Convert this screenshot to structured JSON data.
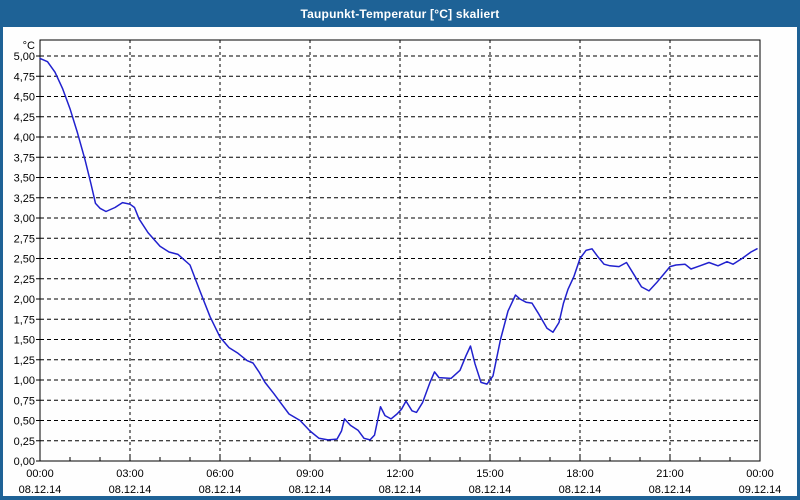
{
  "window": {
    "title": "Taupunkt-Temperatur [°C] skaliert"
  },
  "colors": {
    "frame_blue": "#1E6296",
    "line_blue": "#2121CE",
    "grid_black": "#000000",
    "plot_background": "#FEFEFE",
    "title_text": "#FFFFFF"
  },
  "chart_data": {
    "type": "line",
    "title": "Taupunkt-Temperatur [°C] skaliert",
    "grid": true,
    "legend": false,
    "y_axis": {
      "unit": "°C",
      "min": 0,
      "max": 5,
      "tick_step": 0.25,
      "tick_labels": [
        "0,00",
        "0,25",
        "0,50",
        "0,75",
        "1,00",
        "1,25",
        "1,50",
        "1,75",
        "2,00",
        "2,25",
        "2,50",
        "2,75",
        "3,00",
        "3,25",
        "3,50",
        "3,75",
        "4,00",
        "4,25",
        "4,50",
        "4,75",
        "5,00"
      ]
    },
    "x_axis": {
      "range_hours": [
        0,
        24
      ],
      "major_tick_hours": 3,
      "minor_tick_hours": 1,
      "tick_labels": [
        {
          "time": "00:00",
          "date": "08.12.14"
        },
        {
          "time": "03:00",
          "date": "08.12.14"
        },
        {
          "time": "06:00",
          "date": "08.12.14"
        },
        {
          "time": "09:00",
          "date": "08.12.14"
        },
        {
          "time": "12:00",
          "date": "08.12.14"
        },
        {
          "time": "15:00",
          "date": "08.12.14"
        },
        {
          "time": "18:00",
          "date": "08.12.14"
        },
        {
          "time": "21:00",
          "date": "08.12.14"
        },
        {
          "time": "00:00",
          "date": "09.12.14"
        }
      ]
    },
    "series": [
      {
        "name": "Taupunkt-Temperatur",
        "color": "#2121CE",
        "points": [
          {
            "t": 0.0,
            "v": 4.97
          },
          {
            "t": 0.25,
            "v": 4.93
          },
          {
            "t": 0.5,
            "v": 4.8
          },
          {
            "t": 0.75,
            "v": 4.6
          },
          {
            "t": 1.0,
            "v": 4.35
          },
          {
            "t": 1.25,
            "v": 4.05
          },
          {
            "t": 1.5,
            "v": 3.72
          },
          {
            "t": 1.7,
            "v": 3.42
          },
          {
            "t": 1.85,
            "v": 3.18
          },
          {
            "t": 2.0,
            "v": 3.12
          },
          {
            "t": 2.2,
            "v": 3.08
          },
          {
            "t": 2.5,
            "v": 3.13
          },
          {
            "t": 2.75,
            "v": 3.19
          },
          {
            "t": 3.0,
            "v": 3.17
          },
          {
            "t": 3.15,
            "v": 3.13
          },
          {
            "t": 3.3,
            "v": 2.99
          },
          {
            "t": 3.6,
            "v": 2.82
          },
          {
            "t": 4.0,
            "v": 2.65
          },
          {
            "t": 4.3,
            "v": 2.58
          },
          {
            "t": 4.6,
            "v": 2.55
          },
          {
            "t": 5.0,
            "v": 2.42
          },
          {
            "t": 5.33,
            "v": 2.1
          },
          {
            "t": 5.67,
            "v": 1.78
          },
          {
            "t": 6.0,
            "v": 1.53
          },
          {
            "t": 6.3,
            "v": 1.4
          },
          {
            "t": 6.6,
            "v": 1.33
          },
          {
            "t": 6.9,
            "v": 1.24
          },
          {
            "t": 7.1,
            "v": 1.21
          },
          {
            "t": 7.3,
            "v": 1.1
          },
          {
            "t": 7.5,
            "v": 0.97
          },
          {
            "t": 7.8,
            "v": 0.83
          },
          {
            "t": 8.0,
            "v": 0.73
          },
          {
            "t": 8.3,
            "v": 0.58
          },
          {
            "t": 8.67,
            "v": 0.5
          },
          {
            "t": 9.0,
            "v": 0.37
          },
          {
            "t": 9.3,
            "v": 0.28
          },
          {
            "t": 9.6,
            "v": 0.26
          },
          {
            "t": 9.9,
            "v": 0.27
          },
          {
            "t": 10.05,
            "v": 0.37
          },
          {
            "t": 10.15,
            "v": 0.52
          },
          {
            "t": 10.35,
            "v": 0.44
          },
          {
            "t": 10.6,
            "v": 0.38
          },
          {
            "t": 10.8,
            "v": 0.28
          },
          {
            "t": 11.0,
            "v": 0.26
          },
          {
            "t": 11.15,
            "v": 0.32
          },
          {
            "t": 11.35,
            "v": 0.67
          },
          {
            "t": 11.5,
            "v": 0.56
          },
          {
            "t": 11.7,
            "v": 0.52
          },
          {
            "t": 11.9,
            "v": 0.58
          },
          {
            "t": 12.05,
            "v": 0.64
          },
          {
            "t": 12.2,
            "v": 0.74
          },
          {
            "t": 12.4,
            "v": 0.62
          },
          {
            "t": 12.55,
            "v": 0.6
          },
          {
            "t": 12.75,
            "v": 0.72
          },
          {
            "t": 13.0,
            "v": 0.97
          },
          {
            "t": 13.15,
            "v": 1.1
          },
          {
            "t": 13.3,
            "v": 1.03
          },
          {
            "t": 13.7,
            "v": 1.02
          },
          {
            "t": 14.0,
            "v": 1.12
          },
          {
            "t": 14.2,
            "v": 1.3
          },
          {
            "t": 14.35,
            "v": 1.42
          },
          {
            "t": 14.5,
            "v": 1.2
          },
          {
            "t": 14.7,
            "v": 0.97
          },
          {
            "t": 14.9,
            "v": 0.95
          },
          {
            "t": 15.1,
            "v": 1.05
          },
          {
            "t": 15.35,
            "v": 1.5
          },
          {
            "t": 15.6,
            "v": 1.85
          },
          {
            "t": 15.85,
            "v": 2.05
          },
          {
            "t": 16.0,
            "v": 2.0
          },
          {
            "t": 16.2,
            "v": 1.96
          },
          {
            "t": 16.4,
            "v": 1.95
          },
          {
            "t": 16.6,
            "v": 1.83
          },
          {
            "t": 16.9,
            "v": 1.64
          },
          {
            "t": 17.1,
            "v": 1.59
          },
          {
            "t": 17.3,
            "v": 1.71
          },
          {
            "t": 17.45,
            "v": 1.95
          },
          {
            "t": 17.6,
            "v": 2.12
          },
          {
            "t": 17.8,
            "v": 2.28
          },
          {
            "t": 18.0,
            "v": 2.5
          },
          {
            "t": 18.2,
            "v": 2.6
          },
          {
            "t": 18.4,
            "v": 2.62
          },
          {
            "t": 18.6,
            "v": 2.52
          },
          {
            "t": 18.8,
            "v": 2.43
          },
          {
            "t": 19.0,
            "v": 2.41
          },
          {
            "t": 19.3,
            "v": 2.4
          },
          {
            "t": 19.55,
            "v": 2.45
          },
          {
            "t": 19.8,
            "v": 2.3
          },
          {
            "t": 20.05,
            "v": 2.15
          },
          {
            "t": 20.3,
            "v": 2.1
          },
          {
            "t": 20.55,
            "v": 2.2
          },
          {
            "t": 20.8,
            "v": 2.31
          },
          {
            "t": 21.0,
            "v": 2.4
          },
          {
            "t": 21.2,
            "v": 2.42
          },
          {
            "t": 21.5,
            "v": 2.43
          },
          {
            "t": 21.7,
            "v": 2.37
          },
          {
            "t": 22.0,
            "v": 2.41
          },
          {
            "t": 22.3,
            "v": 2.45
          },
          {
            "t": 22.6,
            "v": 2.41
          },
          {
            "t": 22.9,
            "v": 2.46
          },
          {
            "t": 23.1,
            "v": 2.43
          },
          {
            "t": 23.4,
            "v": 2.5
          },
          {
            "t": 23.7,
            "v": 2.58
          },
          {
            "t": 23.9,
            "v": 2.62
          }
        ]
      }
    ]
  }
}
